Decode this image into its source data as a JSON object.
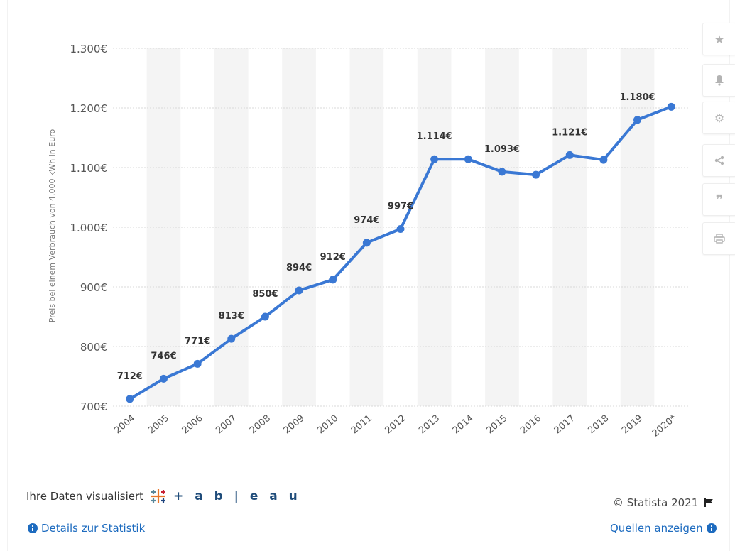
{
  "sidebar": {
    "buttons": [
      {
        "name": "star-icon"
      },
      {
        "name": "bell-icon"
      },
      {
        "name": "gear-icon"
      },
      {
        "name": "share-icon"
      },
      {
        "name": "quote-icon"
      },
      {
        "name": "print-icon"
      }
    ]
  },
  "footer": {
    "viz_label": "Ihre Daten visualisiert",
    "tableau": "+ a b | e a u",
    "copyright": "© Statista 2021",
    "details": "Details zur Statistik",
    "sources": "Quellen anzeigen"
  },
  "colors": {
    "line": "#3a78d4",
    "band": "#f4f4f4",
    "grid": "#d9d9d9",
    "text": "#555555",
    "link": "#1d6bbf"
  },
  "chart_data": {
    "type": "line",
    "ylabel": "Preis bei einem Verbrauch von 4.000 kWh in Euro",
    "ylim": [
      700,
      1300
    ],
    "yticks": [
      700,
      800,
      900,
      1000,
      1100,
      1200,
      1300
    ],
    "ytick_labels": [
      "700€",
      "800€",
      "900€",
      "1.000€",
      "1.100€",
      "1.200€",
      "1.300€"
    ],
    "categories": [
      "2004",
      "2005",
      "2006",
      "2007",
      "2008",
      "2009",
      "2010",
      "2011",
      "2012",
      "2013",
      "2014",
      "2015",
      "2016",
      "2017",
      "2018",
      "2019",
      "2020*"
    ],
    "values": [
      712,
      746,
      771,
      813,
      850,
      894,
      912,
      974,
      997,
      1114,
      1114,
      1093,
      1088,
      1121,
      1113,
      1180,
      1202
    ],
    "data_labels": [
      "712€",
      "746€",
      "771€",
      "813€",
      "850€",
      "894€",
      "912€",
      "974€",
      "997€",
      "1.114€",
      "",
      "1.093€",
      "",
      "1.121€",
      "",
      "1.180€",
      ""
    ],
    "grid": true,
    "alternating_bands": true
  }
}
